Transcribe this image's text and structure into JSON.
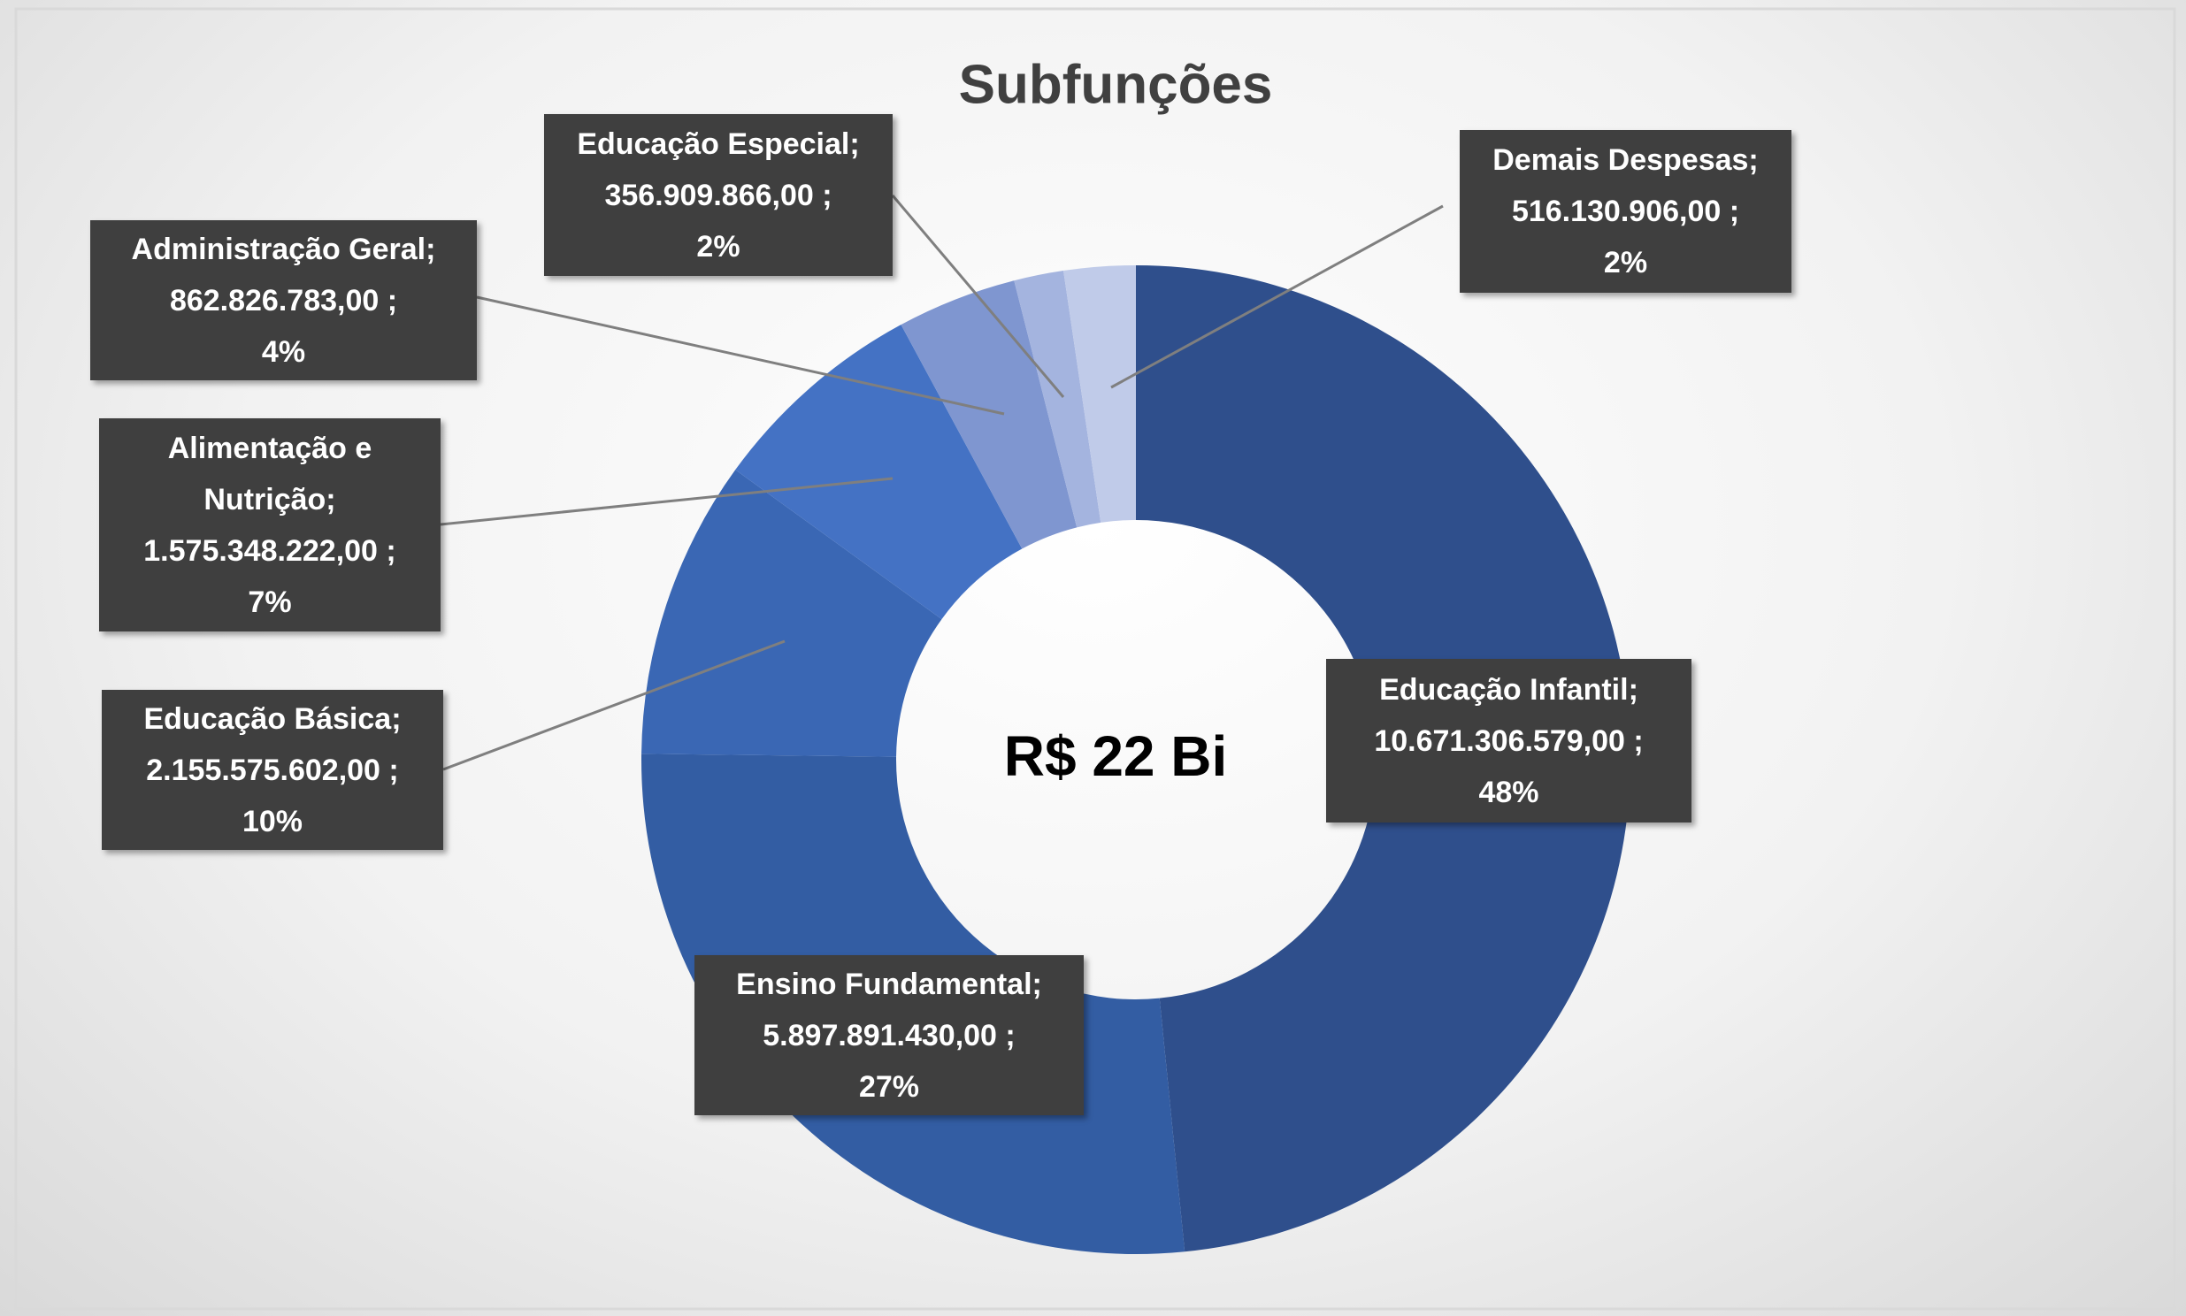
{
  "chart_data": {
    "type": "donut",
    "title": "Subfunções",
    "center_label": "R$ 22 Bi",
    "categories": [
      "Educação Infantil;",
      "Ensino Fundamental;",
      "Educação Básica;",
      "Alimentação e Nutrição;",
      "Administração Geral;",
      "Educação Especial;",
      "Demais Despesas;"
    ],
    "values": [
      10671306579,
      5897891430,
      2155575602,
      1575348222,
      862826783,
      356909866,
      516130906
    ],
    "value_labels": [
      "10.671.306.579,00 ;",
      "5.897.891.430,00 ;",
      "2.155.575.602,00 ;",
      "1.575.348.222,00 ;",
      "862.826.783,00 ;",
      "356.909.866,00 ;",
      "516.130.906,00 ;"
    ],
    "percent_labels": [
      "48%",
      "27%",
      "10%",
      "7%",
      "4%",
      "2%",
      "2%"
    ],
    "colors": [
      "#2f4f8c",
      "#335da3",
      "#3a67b4",
      "#4472c4",
      "#7f96d0",
      "#a4b4df",
      "#c0cbe9"
    ]
  }
}
